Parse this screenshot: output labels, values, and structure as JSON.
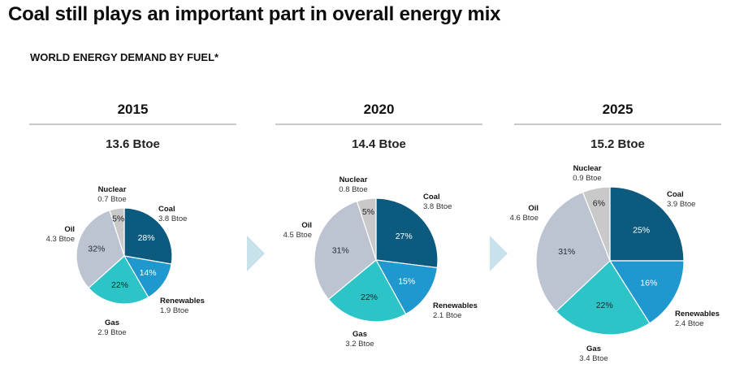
{
  "title": "Coal still plays an important part in overall energy mix",
  "subtitle": "WORLD ENERGY DEMAND BY FUEL*",
  "colors": {
    "Coal": "#0c5a7d",
    "Renewables": "#1f97cf",
    "Gas": "#2cc4c6",
    "Oil": "#bcc3d1",
    "Nuclear": "#c9c9c9",
    "arrow": "#c8e2ec"
  },
  "chart_data": [
    {
      "type": "pie",
      "title": "2015",
      "subtitle": "13.6 Btoe",
      "slices": [
        {
          "name": "Coal",
          "value": 3.8,
          "value_label": "3.8 Btoe",
          "percent": 28
        },
        {
          "name": "Renewables",
          "value": 1.9,
          "value_label": "1.9 Btoe",
          "percent": 14
        },
        {
          "name": "Gas",
          "value": 2.9,
          "value_label": "2.9 Btoe",
          "percent": 22
        },
        {
          "name": "Oil",
          "value": 4.3,
          "value_label": "4.3 Btoe",
          "percent": 32
        },
        {
          "name": "Nuclear",
          "value": 0.7,
          "value_label": "0.7 Btoe",
          "percent": 5
        }
      ]
    },
    {
      "type": "pie",
      "title": "2020",
      "subtitle": "14.4 Btoe",
      "slices": [
        {
          "name": "Coal",
          "value": 3.8,
          "value_label": "3.8 Btoe",
          "percent": 27
        },
        {
          "name": "Renewables",
          "value": 2.1,
          "value_label": "2.1 Btoe",
          "percent": 15
        },
        {
          "name": "Gas",
          "value": 3.2,
          "value_label": "3.2 Btoe",
          "percent": 22
        },
        {
          "name": "Oil",
          "value": 4.5,
          "value_label": "4.5 Btoe",
          "percent": 31
        },
        {
          "name": "Nuclear",
          "value": 0.8,
          "value_label": "0.8 Btoe",
          "percent": 5
        }
      ]
    },
    {
      "type": "pie",
      "title": "2025",
      "subtitle": "15.2 Btoe",
      "slices": [
        {
          "name": "Coal",
          "value": 3.9,
          "value_label": "3.9 Btoe",
          "percent": 25
        },
        {
          "name": "Renewables",
          "value": 2.4,
          "value_label": "2.4 Btoe",
          "percent": 16
        },
        {
          "name": "Gas",
          "value": 3.4,
          "value_label": "3.4 Btoe",
          "percent": 22
        },
        {
          "name": "Oil",
          "value": 4.6,
          "value_label": "4.6 Btoe",
          "percent": 31
        },
        {
          "name": "Nuclear",
          "value": 0.9,
          "value_label": "0.9 Btoe",
          "percent": 6
        }
      ]
    }
  ]
}
